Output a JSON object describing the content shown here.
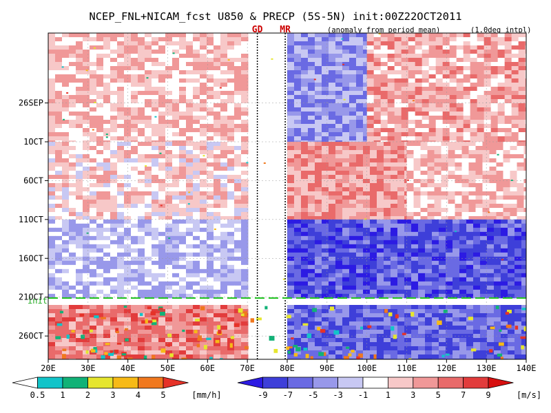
{
  "chart_data": {
    "type": "heatmap",
    "title": "NCEP_FNL+NICAM_fcst U850 & PRECP (5S-5N) init:00Z22OCT2011",
    "subtitle_left": "(anomaly from period mean)",
    "subtitle_right": "(1.0deg intpl)",
    "markers": [
      {
        "label": "GD",
        "lon": 72.5,
        "color": "#cc0000"
      },
      {
        "label": "MR",
        "lon": 79.5,
        "color": "#cc0000"
      }
    ],
    "init_label": "init",
    "init_line_date": "22OCT",
    "x_axis": {
      "range": [
        20,
        140
      ],
      "ticks": [
        20,
        30,
        40,
        50,
        60,
        70,
        80,
        90,
        100,
        110,
        120,
        130,
        140
      ],
      "tick_labels": [
        "20E",
        "30E",
        "40E",
        "50E",
        "60E",
        "70E",
        "80E",
        "90E",
        "100E",
        "110E",
        "120E",
        "130E",
        "140E"
      ]
    },
    "y_axis": {
      "tick_labels": [
        "26SEP",
        "1OCT",
        "6OCT",
        "11OCT",
        "16OCT",
        "21OCT",
        "26OCT"
      ],
      "range": [
        "17SEP",
        "29OCT"
      ],
      "direction": "time increases downward"
    },
    "grid": true,
    "u850_bands": [
      {
        "period": "17SEP-6OCT",
        "pattern": "mixed easterly/westerly",
        "regions": [
          {
            "lon": [
              20,
              70
            ],
            "value": 2
          },
          {
            "lon": [
              80,
              100
            ],
            "value": -4
          },
          {
            "lon": [
              100,
              140
            ],
            "value": 3
          }
        ]
      },
      {
        "period": "1OCT-11OCT",
        "pattern": "westerly east of 80E",
        "regions": [
          {
            "lon": [
              20,
              70
            ],
            "value": 1
          },
          {
            "lon": [
              80,
              110
            ],
            "value": 4
          },
          {
            "lon": [
              110,
              140
            ],
            "value": 2
          }
        ]
      },
      {
        "period": "11OCT-21OCT",
        "pattern": "easterly",
        "regions": [
          {
            "lon": [
              20,
              70
            ],
            "value": -2
          },
          {
            "lon": [
              80,
              140
            ],
            "value": -7
          }
        ]
      },
      {
        "period": "22OCT-29OCT",
        "pattern": "westerly west, easterly east",
        "regions": [
          {
            "lon": [
              20,
              70
            ],
            "value": 5
          },
          {
            "lon": [
              80,
              140
            ],
            "value": -6
          }
        ]
      }
    ],
    "precip_legend": {
      "levels": [
        0.5,
        1,
        2,
        3,
        4,
        5
      ],
      "tick_labels": [
        "0.5",
        "1",
        "2",
        "3",
        "4",
        "5"
      ],
      "colors": [
        "#ffffff",
        "#12c4c9",
        "#11b277",
        "#e6e62e",
        "#f7ba16",
        "#f0781e",
        "#e63228"
      ],
      "unit": "[mm/h]"
    },
    "u850_legend": {
      "levels": [
        -9,
        -7,
        -5,
        -3,
        -1,
        1,
        3,
        5,
        7,
        9
      ],
      "tick_labels": [
        "-9",
        "-7",
        "-5",
        "-3",
        "-1",
        "1",
        "3",
        "5",
        "7",
        "9"
      ],
      "colors": [
        "#2c1be3",
        "#3e3fd9",
        "#6a6ae3",
        "#9898ea",
        "#c8c8f3",
        "#ffffff",
        "#f7c8c8",
        "#f09898",
        "#e96a6a",
        "#e23c3c",
        "#d70f0f"
      ],
      "unit": "[m/s]"
    }
  }
}
